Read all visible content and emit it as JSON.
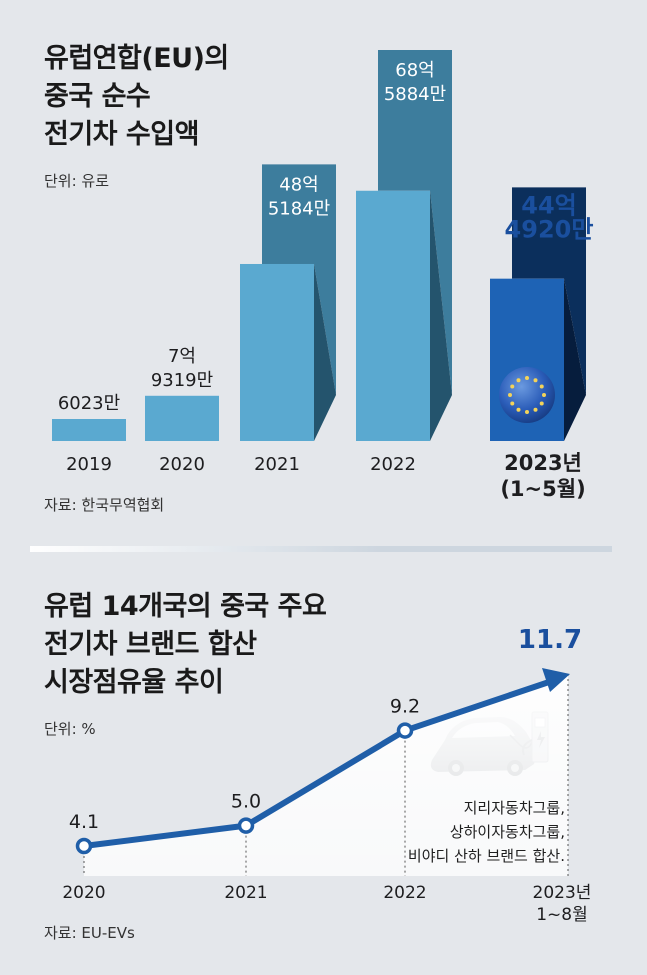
{
  "top": {
    "title_lines": [
      "유럽연합(EU)의",
      "중국 순수",
      "전기차 수입액"
    ],
    "unit": "단위: 유로",
    "source": "자료: 한국무역협회"
  },
  "bottom": {
    "title_lines": [
      "유럽 14개국의 중국 주요",
      "전기차 브랜드 합산",
      "시장점유율 추이"
    ],
    "unit": "단위: %",
    "source": "자료: EU-EVs",
    "note_lines": [
      "지리자동차그룹,",
      "상하이자동차그룹,",
      "비야디 산하 브랜드 합산."
    ]
  },
  "colors": {
    "bar_light": "#5aa9d0",
    "bar_dark": "#3d7d9d",
    "bar_highlight": "#1e63b5",
    "bar_highlight_dark": "#0b2f5c",
    "line": "#1f5ea8",
    "highlight_text": "#1a4f9e"
  },
  "icons": [
    "eu-flag-icon",
    "electric-car-icon",
    "charging-station-icon"
  ],
  "chart_data": [
    {
      "type": "bar",
      "title": "유럽연합(EU)의 중국 순수 전기차 수입액",
      "ylabel": "단위: 유로",
      "categories": [
        "2019",
        "2020",
        "2021",
        "2022",
        "2023년 (1~5월)"
      ],
      "category_lines": [
        [
          "2019"
        ],
        [
          "2020"
        ],
        [
          "2021"
        ],
        [
          "2022"
        ],
        [
          "2023년",
          "(1~5월)"
        ]
      ],
      "values": [
        60230000,
        793190000,
        4851840000,
        6858840000,
        4449200000
      ],
      "value_labels": [
        [
          "6023만"
        ],
        [
          "7억",
          "9319만"
        ],
        [
          "48억",
          "5184만"
        ],
        [
          "68억",
          "5884만"
        ],
        [
          "44억",
          "4920만"
        ]
      ],
      "highlight_index": 4
    },
    {
      "type": "line",
      "title": "유럽 14개국의 중국 주요 전기차 브랜드 합산 시장점유율 추이",
      "ylabel": "단위: %",
      "categories": [
        "2020",
        "2021",
        "2022",
        "2023년 1~8월"
      ],
      "category_lines": [
        [
          "2020"
        ],
        [
          "2021"
        ],
        [
          "2022"
        ],
        [
          "2023년",
          "1~8월"
        ]
      ],
      "values": [
        4.1,
        5.0,
        9.2,
        11.7
      ],
      "value_labels": [
        "4.1",
        "5.0",
        "9.2",
        "11.7"
      ],
      "highlight_index": 3
    }
  ]
}
